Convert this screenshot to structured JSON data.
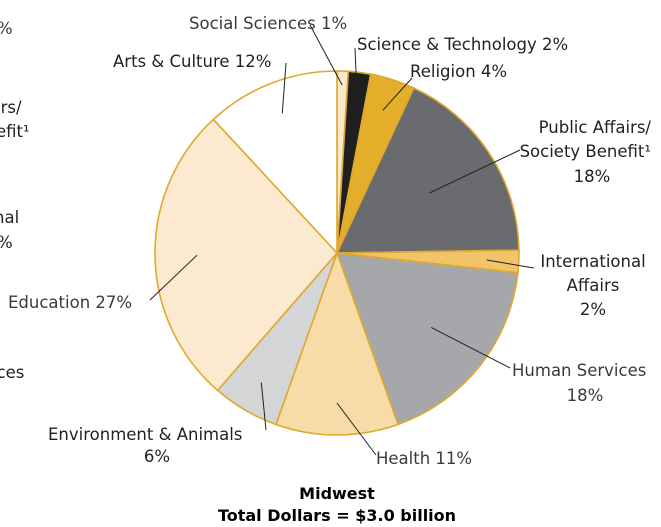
{
  "chart_data": {
    "type": "pie",
    "title": "Midwest",
    "subtitle": "Total Dollars = $3.0 billion",
    "slices": [
      {
        "label": "Social Sciences",
        "value": 1,
        "display": "1%",
        "color": "#fbe9cc"
      },
      {
        "label": "Science & Technology",
        "value": 2,
        "display": "2%",
        "color": "#1f1f1f"
      },
      {
        "label": "Religion",
        "value": 4,
        "display": "4%",
        "color": "#e3ae2a"
      },
      {
        "label": "Public Affairs/ Society Benefit¹",
        "value": 18,
        "display": "18%",
        "color": "#6a6b6e"
      },
      {
        "label": "International Affairs",
        "value": 2,
        "display": "2%",
        "color": "#f1c46a"
      },
      {
        "label": "Human Services",
        "value": 18,
        "display": "18%",
        "color": "#a6a7aa"
      },
      {
        "label": "Health",
        "value": 11,
        "display": "11%",
        "color": "#f7dca8"
      },
      {
        "label": "Environment & Animals",
        "value": 6,
        "display": "6%",
        "color": "#d4d5d7"
      },
      {
        "label": "Education",
        "value": 27,
        "display": "27%",
        "color": "#fbeacf"
      },
      {
        "label": "Arts & Culture",
        "value": 12,
        "display": "12%",
        "color": "#ffffff"
      }
    ],
    "slice_border_color": "#e0a82e",
    "label_lines": [
      "Social Sciences 1%",
      "Science & Technology 2%",
      "Religion 4%",
      "Public Affairs/",
      "Society Benefit¹",
      "18%",
      "International",
      "Affairs",
      "2%",
      "Human Services",
      "18%",
      "Health 11%",
      "Environment & Animals",
      "6%",
      "Education 27%",
      "Arts & Culture 12%"
    ],
    "cropped_left_fragments": [
      "%",
      "irs/",
      "efit¹",
      "nal",
      "%",
      "ices"
    ]
  }
}
